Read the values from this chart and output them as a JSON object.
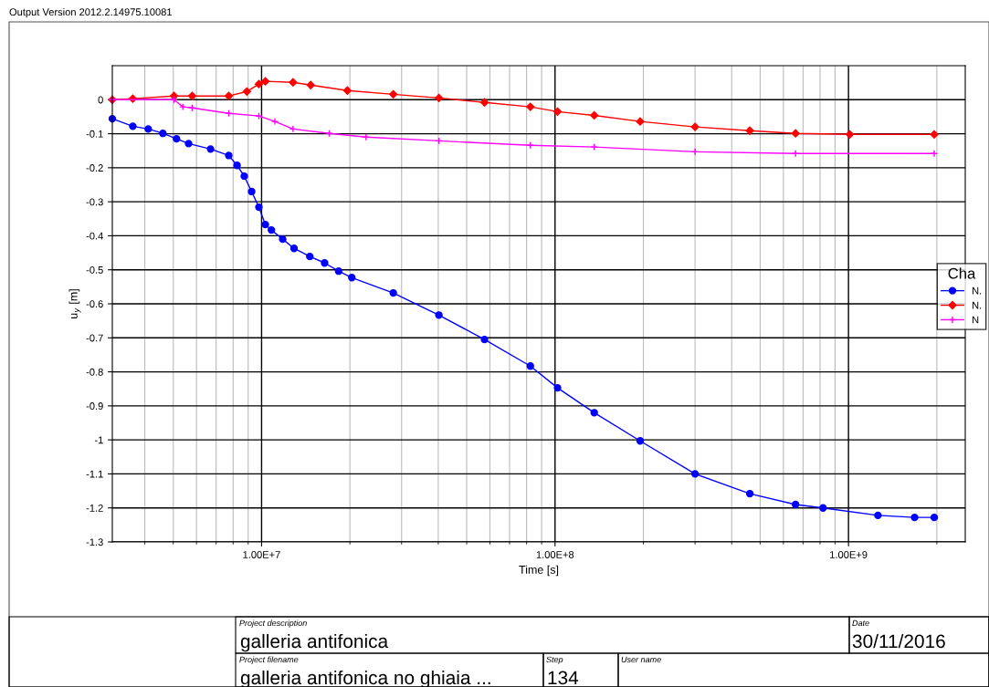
{
  "chart_data": {
    "type": "line",
    "xlabel": "Time [s]",
    "ylabel": "u$_{y}$ [m]",
    "legend_title": "Cha",
    "log": "x",
    "grid": true,
    "legend": "right",
    "xlim": [
      3100000.0,
      2500000000.0
    ],
    "xticks": [
      {
        "value": 10000000.0,
        "label": "1.00E+7"
      },
      {
        "value": 100000000.0,
        "label": "1.00E+8"
      },
      {
        "value": 1000000000.0,
        "label": "1.00E+9"
      }
    ],
    "ylim": [
      -1.3,
      0.1
    ],
    "yticks": [
      -1.3,
      -1.2,
      -1.1,
      -1,
      -0.9,
      -0.8,
      -0.7,
      -0.6,
      -0.5,
      -0.4,
      -0.3,
      -0.2,
      -0.1,
      0
    ],
    "series": [
      {
        "name": "N.",
        "color": "#0000ff",
        "marker": "circle",
        "x": [
          3100000.0,
          3640000.0,
          4110000.0,
          4610000.0,
          5130000.0,
          5640000.0,
          6700000.0,
          7730000.0,
          8250000.0,
          8730000.0,
          9250000.0,
          9790000.0,
          10300000.0,
          10800000.0,
          11800000.0,
          12900000.0,
          14600000.0,
          16400000.0,
          18300000.0,
          20300000.0,
          28100000.0,
          40200000.0,
          57500000.0,
          82400000.0,
          102000000.0,
          136000000.0,
          195000000.0,
          300000000.0,
          461000000.0,
          660000000.0,
          819000000.0,
          1260000000.0,
          1680000000.0,
          1960000000.0
        ],
        "values": [
          -0.056,
          -0.078,
          -0.086,
          -0.099,
          -0.115,
          -0.129,
          -0.145,
          -0.164,
          -0.193,
          -0.225,
          -0.27,
          -0.316,
          -0.367,
          -0.383,
          -0.41,
          -0.437,
          -0.461,
          -0.48,
          -0.504,
          -0.523,
          -0.568,
          -0.633,
          -0.705,
          -0.783,
          -0.847,
          -0.92,
          -1.003,
          -1.1,
          -1.158,
          -1.19,
          -1.2,
          -1.222,
          -1.228,
          -1.228
        ]
      },
      {
        "name": "N.",
        "color": "#ff0000",
        "marker": "diamond",
        "x": [
          3100000.0,
          3640000.0,
          5030000.0,
          5800000.0,
          7730000.0,
          8910000.0,
          9790000.0,
          10300000.0,
          12800000.0,
          14700000.0,
          19600000.0,
          28100000.0,
          40200000.0,
          57500000.0,
          82400000.0,
          102000000.0,
          136000000.0,
          195000000.0,
          300000000.0,
          461000000.0,
          660000000.0,
          1010000000.0,
          1960000000.0
        ],
        "values": [
          0,
          0.003,
          0.011,
          0.011,
          0.011,
          0.024,
          0.046,
          0.054,
          0.051,
          0.043,
          0.027,
          0.016,
          0.005,
          -0.008,
          -0.021,
          -0.035,
          -0.046,
          -0.064,
          -0.08,
          -0.091,
          -0.099,
          -0.102,
          -0.102
        ]
      },
      {
        "name": "N",
        "color": "#ff00ff",
        "marker": "cross",
        "x": [
          3100000.0,
          5030000.0,
          5390000.0,
          5800000.0,
          7730000.0,
          9790000.0,
          11100000.0,
          12800000.0,
          17000000.0,
          22700000.0,
          40200000.0,
          82400000.0,
          136000000.0,
          300000000.0,
          660000000.0,
          1960000000.0
        ],
        "values": [
          0,
          0,
          -0.021,
          -0.024,
          -0.04,
          -0.048,
          -0.064,
          -0.086,
          -0.099,
          -0.11,
          -0.121,
          -0.134,
          -0.139,
          -0.153,
          -0.158,
          -0.158
        ]
      }
    ],
    "annotations": [
      "Output Version 2012.2.14975.10081",
      "Project description",
      "galleria antifonica",
      "Date",
      "30/11/2016",
      "Project filename",
      "galleria antifonica no ghiaia ...",
      "Step",
      "134",
      "User name"
    ]
  }
}
